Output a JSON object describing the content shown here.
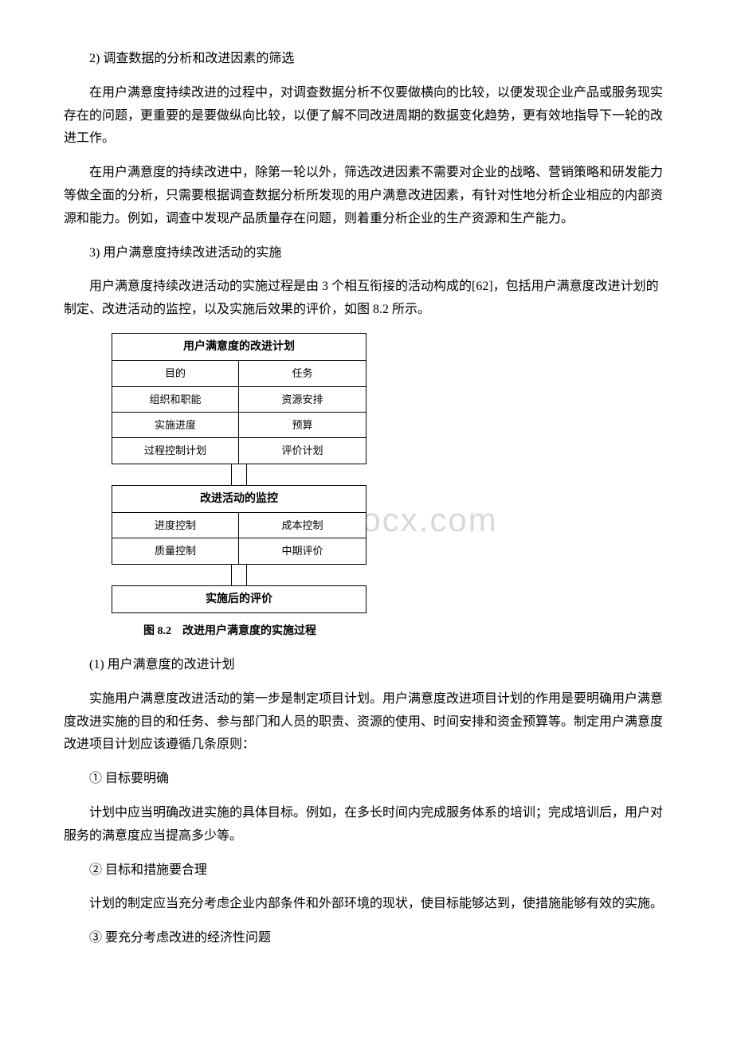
{
  "watermark": "www.bdocx.com",
  "paragraphs": {
    "p1": "2) 调查数据的分析和改进因素的筛选",
    "p2": "在用户满意度持续改进的过程中，对调查数据分析不仅要做横向的比较，以便发现企业产品或服务现实存在的问题，更重要的是要做纵向比较，以便了解不同改进周期的数据变化趋势，更有效地指导下一轮的改进工作。",
    "p3": "在用户满意度的持续改进中，除第一轮以外，筛选改进因素不需要对企业的战略、营销策略和研发能力等做全面的分析，只需要根据调查数据分析所发现的用户满意改进因素，有针对性地分析企业相应的内部资源和能力。例如，调查中发现产品质量存在问题，则着重分析企业的生产资源和生产能力。",
    "p4": "3) 用户满意度持续改进活动的实施",
    "p5": "用户满意度持续改进活动的实施过程是由 3 个相互衔接的活动构成的[62]，包括用户满意度改进计划的制定、改进活动的监控，以及实施后效果的评价，如图 8.2 所示。",
    "p6": "(1) 用户满意度的改进计划",
    "p7": "实施用户满意度改进活动的第一步是制定项目计划。用户满意度改进项目计划的作用是要明确用户满意度改进实施的目的和任务、参与部门和人员的职责、资源的使用、时间安排和资金预算等。制定用户满意度改进项目计划应该遵循几条原则：",
    "p8": "① 目标要明确",
    "p9": "计划中应当明确改进实施的具体目标。例如，在多长时间内完成服务体系的培训；完成培训后，用户对服务的满意度应当提高多少等。",
    "p10": "② 目标和措施要合理",
    "p11": "计划的制定应当充分考虑企业内部条件和外部环境的现状，使目标能够达到，使措施能够有效的实施。",
    "p12": "③ 要充分考虑改进的经济性问题"
  },
  "diagram": {
    "block1": {
      "title": "用户满意度的改进计划",
      "rows": [
        [
          "目的",
          "任务"
        ],
        [
          "组织和职能",
          "资源安排"
        ],
        [
          "实施进度",
          "预算"
        ],
        [
          "过程控制计划",
          "评价计划"
        ]
      ]
    },
    "block2": {
      "title": "改进活动的监控",
      "rows": [
        [
          "进度控制",
          "成本控制"
        ],
        [
          "质量控制",
          "中期评价"
        ]
      ]
    },
    "block3": {
      "title": "实施后的评价"
    },
    "caption": "图 8.2　改进用户满意度的实施过程"
  },
  "style": {
    "body_fontsize": 16,
    "caption_fontsize": 14,
    "cell_fontsize": 13,
    "border_color": "#000000",
    "background": "#ffffff",
    "watermark_color": "#d9d9d9",
    "diagram_width": 320
  }
}
